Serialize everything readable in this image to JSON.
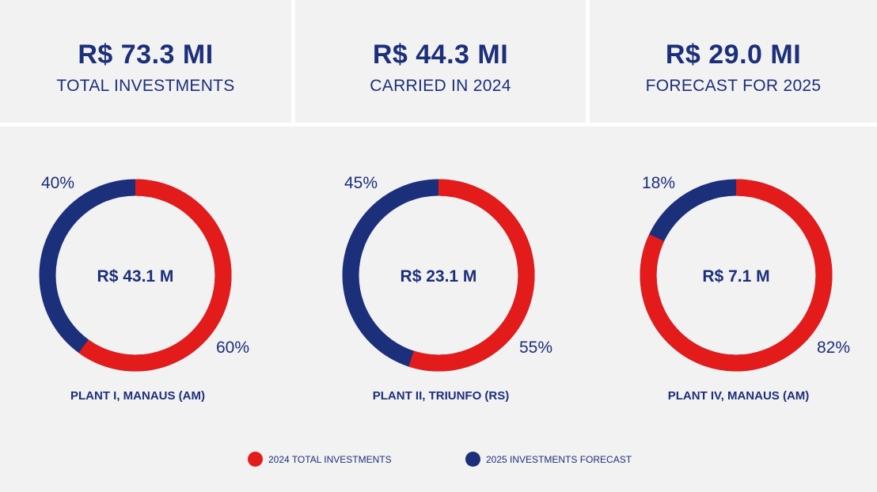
{
  "kpis": [
    {
      "value": "R$ 73.3 MI",
      "label": "TOTAL INVESTMENTS"
    },
    {
      "value": "R$ 44.3 MI",
      "label": "CARRIED IN 2024"
    },
    {
      "value": "R$ 29.0 MI",
      "label": "FORECAST FOR 2025"
    }
  ],
  "colors": {
    "red": "#e31b1b",
    "navy": "#1c2f7a"
  },
  "chart_data": [
    {
      "type": "pie",
      "donut": true,
      "title": "PLANT I, MANAUS (AM)",
      "center_label": "R$ 43.1 M",
      "categories": [
        "2024 TOTAL INVESTMENTS",
        "2025 INVESTMENTS FORECAST"
      ],
      "values": [
        60,
        40
      ],
      "labels": [
        "60%",
        "40%"
      ]
    },
    {
      "type": "pie",
      "donut": true,
      "title": "PLANT II, TRIUNFO (RS)",
      "center_label": "R$ 23.1 M",
      "categories": [
        "2024 TOTAL INVESTMENTS",
        "2025 INVESTMENTS FORECAST"
      ],
      "values": [
        55,
        45
      ],
      "labels": [
        "55%",
        "45%"
      ]
    },
    {
      "type": "pie",
      "donut": true,
      "title": "PLANT IV, MANAUS (AM)",
      "center_label": "R$ 7.1 M",
      "categories": [
        "2024 TOTAL INVESTMENTS",
        "2025 INVESTMENTS FORECAST"
      ],
      "values": [
        82,
        18
      ],
      "labels": [
        "82%",
        "18%"
      ]
    }
  ],
  "legend": [
    {
      "label": "2024 TOTAL INVESTMENTS",
      "color": "#e31b1b"
    },
    {
      "label": "2025 INVESTMENTS FORECAST",
      "color": "#1c2f7a"
    }
  ]
}
